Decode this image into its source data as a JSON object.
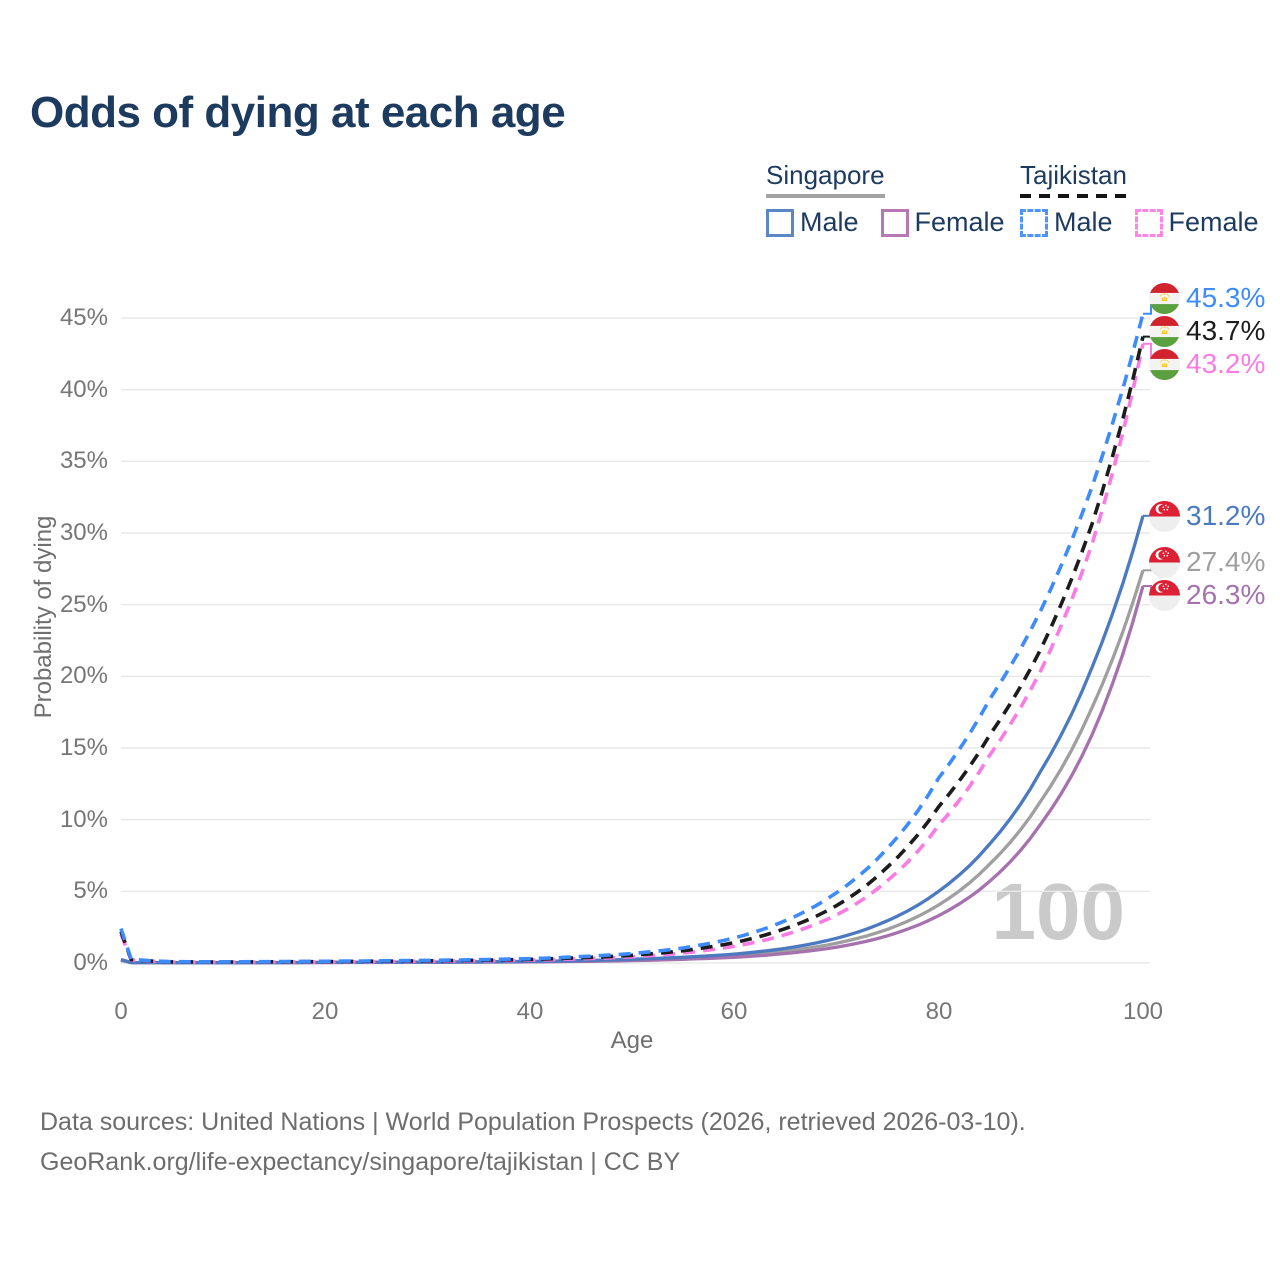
{
  "title": "Odds of dying at each age",
  "legend": {
    "singapore": {
      "label": "Singapore",
      "male_label": "Male",
      "female_label": "Female"
    },
    "tajikistan": {
      "label": "Tajikistan",
      "male_label": "Male",
      "female_label": "Female"
    }
  },
  "axes": {
    "y_label": "Probability of dying",
    "x_label": "Age",
    "y_tick_labels": [
      "45%",
      "40%",
      "35%",
      "30%",
      "25%",
      "20%",
      "15%",
      "10%",
      "5%",
      "0%"
    ],
    "x_tick_labels": [
      "0",
      "20",
      "40",
      "60",
      "80",
      "100"
    ]
  },
  "watermark": "100",
  "sources_line1": "Data sources: United Nations | World Population Prospects (2026, retrieved 2026-03-10).",
  "sources_line2": "GeoRank.org/life-expectancy/singapore/tajikistan | CC BY",
  "colors": {
    "title_text": "#1d3a5f",
    "axis_text": "#767676",
    "gridline": "#e9e9e9",
    "watermark": "#cacaca",
    "singapore_male": "#4b7ac0",
    "singapore_female": "#a572ae",
    "singapore_both": "#9f9f9f",
    "tajikistan_male": "#3d8bfd",
    "tajikistan_female": "#fb7be4",
    "tajikistan_both": "#1c1c1c"
  },
  "chart_data": {
    "type": "line",
    "title": "Odds of dying at each age",
    "xlabel": "Age",
    "ylabel": "Probability of dying",
    "xlim": [
      0,
      100
    ],
    "ylim_pct": [
      0,
      47
    ],
    "x_ticks": [
      0,
      20,
      40,
      60,
      80,
      100
    ],
    "y_ticks_pct": [
      0,
      5,
      10,
      15,
      20,
      25,
      30,
      35,
      40,
      45
    ],
    "grid": "horizontal-only",
    "legend_position": "top-right",
    "watermark_age": "100",
    "series": [
      {
        "name": "Singapore Both sexes",
        "country": "Singapore",
        "sex": "both",
        "flag": "singapore-flag",
        "color": "#9f9f9f",
        "dash": false,
        "end_label": "27.4%",
        "end_value_pct": 27.4,
        "points_pct": [
          [
            0,
            0.22
          ],
          [
            1,
            0.027
          ],
          [
            10,
            0.018
          ],
          [
            20,
            0.038
          ],
          [
            30,
            0.055
          ],
          [
            40,
            0.095
          ],
          [
            50,
            0.21
          ],
          [
            55,
            0.32
          ],
          [
            60,
            0.5
          ],
          [
            65,
            0.82
          ],
          [
            70,
            1.38
          ],
          [
            75,
            2.35
          ],
          [
            80,
            4.05
          ],
          [
            85,
            6.9
          ],
          [
            90,
            11.3
          ],
          [
            95,
            17.8
          ],
          [
            100,
            27.4
          ]
        ]
      },
      {
        "name": "Singapore Female",
        "country": "Singapore",
        "sex": "female",
        "flag": "singapore-flag",
        "color": "#a572ae",
        "dash": false,
        "end_label": "26.3%",
        "end_value_pct": 26.3,
        "points_pct": [
          [
            0,
            0.18
          ],
          [
            1,
            0.022
          ],
          [
            10,
            0.015
          ],
          [
            20,
            0.03
          ],
          [
            30,
            0.045
          ],
          [
            40,
            0.075
          ],
          [
            50,
            0.165
          ],
          [
            55,
            0.26
          ],
          [
            60,
            0.4
          ],
          [
            65,
            0.66
          ],
          [
            70,
            1.1
          ],
          [
            75,
            1.9
          ],
          [
            80,
            3.3
          ],
          [
            85,
            5.7
          ],
          [
            90,
            9.7
          ],
          [
            95,
            15.9
          ],
          [
            100,
            26.3
          ]
        ]
      },
      {
        "name": "Singapore Male",
        "country": "Singapore",
        "sex": "male",
        "flag": "singapore-flag",
        "color": "#4b7ac0",
        "dash": false,
        "end_label": "31.2%",
        "end_value_pct": 31.2,
        "points_pct": [
          [
            0,
            0.25
          ],
          [
            1,
            0.03
          ],
          [
            10,
            0.02
          ],
          [
            20,
            0.045
          ],
          [
            30,
            0.065
          ],
          [
            40,
            0.11
          ],
          [
            50,
            0.26
          ],
          [
            55,
            0.4
          ],
          [
            60,
            0.62
          ],
          [
            65,
            1.02
          ],
          [
            70,
            1.72
          ],
          [
            75,
            2.95
          ],
          [
            80,
            5.0
          ],
          [
            85,
            8.3
          ],
          [
            90,
            13.4
          ],
          [
            95,
            20.6
          ],
          [
            100,
            31.2
          ]
        ]
      },
      {
        "name": "Tajikistan Female",
        "country": "Tajikistan",
        "sex": "female",
        "flag": "tajikistan-flag",
        "color": "#fb7be4",
        "dash": true,
        "end_label": "43.2%",
        "end_value_pct": 43.2,
        "points_pct": [
          [
            0,
            2.0
          ],
          [
            1,
            0.2
          ],
          [
            5,
            0.07
          ],
          [
            10,
            0.06
          ],
          [
            20,
            0.08
          ],
          [
            30,
            0.12
          ],
          [
            40,
            0.2
          ],
          [
            50,
            0.43
          ],
          [
            55,
            0.7
          ],
          [
            60,
            1.16
          ],
          [
            65,
            1.98
          ],
          [
            70,
            3.35
          ],
          [
            75,
            5.75
          ],
          [
            80,
            9.6
          ],
          [
            85,
            14.5
          ],
          [
            90,
            20.4
          ],
          [
            95,
            29.2
          ],
          [
            100,
            43.2
          ]
        ]
      },
      {
        "name": "Tajikistan Both sexes",
        "country": "Tajikistan",
        "sex": "both",
        "flag": "tajikistan-flag",
        "color": "#1c1c1c",
        "dash": true,
        "end_label": "43.7%",
        "end_value_pct": 43.7,
        "points_pct": [
          [
            0,
            2.2
          ],
          [
            1,
            0.23
          ],
          [
            5,
            0.08
          ],
          [
            10,
            0.07
          ],
          [
            20,
            0.1
          ],
          [
            30,
            0.15
          ],
          [
            40,
            0.25
          ],
          [
            50,
            0.54
          ],
          [
            55,
            0.86
          ],
          [
            60,
            1.42
          ],
          [
            65,
            2.4
          ],
          [
            70,
            4.0
          ],
          [
            75,
            6.7
          ],
          [
            80,
            10.9
          ],
          [
            85,
            15.9
          ],
          [
            90,
            21.9
          ],
          [
            95,
            30.6
          ],
          [
            100,
            43.7
          ]
        ]
      },
      {
        "name": "Tajikistan Male",
        "country": "Tajikistan",
        "sex": "male",
        "flag": "tajikistan-flag",
        "color": "#3d8bfd",
        "dash": true,
        "end_label": "45.3%",
        "end_value_pct": 45.3,
        "points_pct": [
          [
            0,
            2.4
          ],
          [
            1,
            0.26
          ],
          [
            5,
            0.09
          ],
          [
            10,
            0.08
          ],
          [
            20,
            0.12
          ],
          [
            30,
            0.18
          ],
          [
            40,
            0.3
          ],
          [
            50,
            0.66
          ],
          [
            55,
            1.05
          ],
          [
            60,
            1.75
          ],
          [
            65,
            2.95
          ],
          [
            70,
            4.9
          ],
          [
            75,
            8.0
          ],
          [
            80,
            12.9
          ],
          [
            85,
            18.4
          ],
          [
            90,
            24.6
          ],
          [
            95,
            33.2
          ],
          [
            100,
            45.3
          ]
        ]
      }
    ]
  }
}
